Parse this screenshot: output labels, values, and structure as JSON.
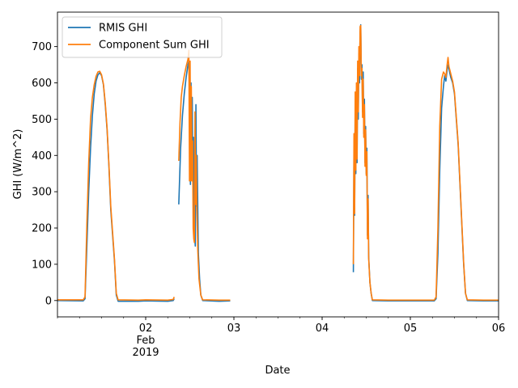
{
  "chart_data": {
    "type": "line",
    "xlabel": "Date",
    "ylabel": "GHI (W/m^2)",
    "xlim": [
      "2019-02-01T00:00",
      "2019-02-06T00:00"
    ],
    "ylim": [
      -45,
      795
    ],
    "grid": false,
    "legend": "top-left",
    "x_ticks": [
      {
        "at": "2019-02-02T00:00",
        "label": "02",
        "label2": "Feb",
        "label3": "2019"
      },
      {
        "at": "2019-02-03T00:00",
        "label": "03"
      },
      {
        "at": "2019-02-04T00:00",
        "label": "04"
      },
      {
        "at": "2019-02-05T00:00",
        "label": "05"
      },
      {
        "at": "2019-02-06T00:00",
        "label": "06"
      }
    ],
    "y_ticks": [
      0,
      100,
      200,
      300,
      400,
      500,
      600,
      700
    ],
    "series": [
      {
        "name": "RMIS GHI",
        "color": "#1f77b4",
        "segments": [
          [
            [
              "2019-02-01T00:00",
              0
            ],
            [
              "2019-02-01T07:00",
              -1
            ],
            [
              "2019-02-01T07:30",
              5
            ],
            [
              "2019-02-01T08:00",
              150
            ],
            [
              "2019-02-01T08:30",
              300
            ],
            [
              "2019-02-01T09:00",
              420
            ],
            [
              "2019-02-01T09:30",
              510
            ],
            [
              "2019-02-01T10:00",
              570
            ],
            [
              "2019-02-01T10:30",
              605
            ],
            [
              "2019-02-01T11:00",
              622
            ],
            [
              "2019-02-01T11:30",
              628
            ],
            [
              "2019-02-01T12:00",
              620
            ],
            [
              "2019-02-01T12:30",
              595
            ],
            [
              "2019-02-01T13:00",
              540
            ],
            [
              "2019-02-01T13:30",
              470
            ],
            [
              "2019-02-01T14:00",
              370
            ],
            [
              "2019-02-01T14:30",
              250
            ],
            [
              "2019-02-01T15:30",
              110
            ],
            [
              "2019-02-01T16:00",
              15
            ],
            [
              "2019-02-01T16:30",
              -2
            ],
            [
              "2019-02-01T22:00",
              -2
            ],
            [
              "2019-02-02T00:00",
              -1
            ],
            [
              "2019-02-02T06:00",
              -2
            ],
            [
              "2019-02-02T07:30",
              0
            ],
            [
              "2019-02-02T07:45",
              5
            ]
          ],
          [
            [
              "2019-02-02T09:00",
              265
            ],
            [
              "2019-02-02T09:30",
              420
            ],
            [
              "2019-02-02T10:00",
              510
            ],
            [
              "2019-02-02T10:30",
              570
            ],
            [
              "2019-02-02T11:00",
              615
            ],
            [
              "2019-02-02T11:30",
              650
            ],
            [
              "2019-02-02T11:45",
              660
            ],
            [
              "2019-02-02T12:00",
              540
            ],
            [
              "2019-02-02T12:10",
              320
            ],
            [
              "2019-02-02T12:20",
              600
            ],
            [
              "2019-02-02T12:30",
              340
            ],
            [
              "2019-02-02T12:40",
              560
            ],
            [
              "2019-02-02T12:50",
              320
            ],
            [
              "2019-02-02T13:00",
              450
            ],
            [
              "2019-02-02T13:10",
              180
            ],
            [
              "2019-02-02T13:20",
              175
            ],
            [
              "2019-02-02T13:30",
              150
            ],
            [
              "2019-02-02T13:40",
              540
            ],
            [
              "2019-02-02T13:50",
              260
            ],
            [
              "2019-02-02T14:00",
              400
            ],
            [
              "2019-02-02T14:10",
              260
            ],
            [
              "2019-02-02T14:20",
              130
            ],
            [
              "2019-02-02T14:40",
              60
            ],
            [
              "2019-02-02T15:00",
              15
            ],
            [
              "2019-02-02T15:30",
              0
            ],
            [
              "2019-02-02T20:00",
              -2
            ],
            [
              "2019-02-02T23:00",
              -1
            ]
          ],
          [
            [
              "2019-02-04T08:30",
              78
            ],
            [
              "2019-02-04T08:40",
              420
            ],
            [
              "2019-02-04T08:50",
              235
            ],
            [
              "2019-02-04T09:00",
              540
            ],
            [
              "2019-02-04T09:10",
              350
            ],
            [
              "2019-02-04T09:20",
              580
            ],
            [
              "2019-02-04T09:30",
              380
            ],
            [
              "2019-02-04T09:40",
              640
            ],
            [
              "2019-02-04T09:50",
              500
            ],
            [
              "2019-02-04T10:00",
              680
            ],
            [
              "2019-02-04T10:10",
              600
            ],
            [
              "2019-02-04T10:20",
              740
            ],
            [
              "2019-02-04T10:30",
              760
            ],
            [
              "2019-02-04T10:40",
              610
            ],
            [
              "2019-02-04T10:50",
              650
            ],
            [
              "2019-02-04T11:00",
              520
            ],
            [
              "2019-02-04T11:10",
              630
            ],
            [
              "2019-02-04T11:20",
              460
            ],
            [
              "2019-02-04T11:30",
              555
            ],
            [
              "2019-02-04T11:40",
              380
            ],
            [
              "2019-02-04T11:50",
              480
            ],
            [
              "2019-02-04T12:00",
              350
            ],
            [
              "2019-02-04T12:10",
              420
            ],
            [
              "2019-02-04T12:20",
              180
            ],
            [
              "2019-02-04T12:30",
              290
            ],
            [
              "2019-02-04T12:40",
              120
            ],
            [
              "2019-02-04T13:00",
              50
            ],
            [
              "2019-02-04T13:20",
              20
            ],
            [
              "2019-02-04T13:40",
              0
            ],
            [
              "2019-02-04T18:00",
              -1
            ],
            [
              "2019-02-05T00:00",
              -1
            ],
            [
              "2019-02-05T06:30",
              -1
            ],
            [
              "2019-02-05T07:00",
              5
            ],
            [
              "2019-02-05T07:30",
              130
            ],
            [
              "2019-02-05T08:00",
              360
            ],
            [
              "2019-02-05T08:30",
              530
            ],
            [
              "2019-02-05T09:00",
              590
            ],
            [
              "2019-02-05T09:20",
              620
            ],
            [
              "2019-02-05T09:40",
              605
            ],
            [
              "2019-02-05T10:00",
              635
            ],
            [
              "2019-02-05T10:20",
              650
            ],
            [
              "2019-02-05T10:40",
              630
            ],
            [
              "2019-02-05T11:00",
              615
            ],
            [
              "2019-02-05T11:30",
              600
            ],
            [
              "2019-02-05T12:00",
              570
            ],
            [
              "2019-02-05T12:30",
              500
            ],
            [
              "2019-02-05T13:00",
              430
            ],
            [
              "2019-02-05T13:30",
              320
            ],
            [
              "2019-02-05T14:00",
              210
            ],
            [
              "2019-02-05T14:30",
              100
            ],
            [
              "2019-02-05T15:00",
              20
            ],
            [
              "2019-02-05T15:30",
              0
            ],
            [
              "2019-02-05T20:00",
              -1
            ],
            [
              "2019-02-06T00:00",
              -1
            ]
          ]
        ]
      },
      {
        "name": "Component Sum GHI",
        "color": "#ff7f0e",
        "segments": [
          [
            [
              "2019-02-01T00:00",
              2
            ],
            [
              "2019-02-01T07:00",
              2
            ],
            [
              "2019-02-01T07:30",
              10
            ],
            [
              "2019-02-01T08:00",
              210
            ],
            [
              "2019-02-01T08:30",
              380
            ],
            [
              "2019-02-01T09:00",
              500
            ],
            [
              "2019-02-01T09:30",
              560
            ],
            [
              "2019-02-01T10:00",
              595
            ],
            [
              "2019-02-01T10:30",
              618
            ],
            [
              "2019-02-01T11:00",
              630
            ],
            [
              "2019-02-01T11:30",
              632
            ],
            [
              "2019-02-01T12:00",
              622
            ],
            [
              "2019-02-01T12:30",
              597
            ],
            [
              "2019-02-01T13:00",
              545
            ],
            [
              "2019-02-01T13:30",
              475
            ],
            [
              "2019-02-01T14:00",
              375
            ],
            [
              "2019-02-01T14:30",
              260
            ],
            [
              "2019-02-01T15:30",
              115
            ],
            [
              "2019-02-01T16:00",
              20
            ],
            [
              "2019-02-01T16:30",
              2
            ],
            [
              "2019-02-01T22:00",
              1
            ],
            [
              "2019-02-02T00:00",
              2
            ],
            [
              "2019-02-02T06:00",
              1
            ],
            [
              "2019-02-02T07:30",
              3
            ],
            [
              "2019-02-02T07:45",
              10
            ]
          ],
          [
            [
              "2019-02-02T09:00",
              385
            ],
            [
              "2019-02-02T09:20",
              490
            ],
            [
              "2019-02-02T09:40",
              560
            ],
            [
              "2019-02-02T10:00",
              590
            ],
            [
              "2019-02-02T10:30",
              620
            ],
            [
              "2019-02-02T11:00",
              645
            ],
            [
              "2019-02-02T11:30",
              665
            ],
            [
              "2019-02-02T11:45",
              690
            ],
            [
              "2019-02-02T11:55",
              330
            ],
            [
              "2019-02-02T12:05",
              660
            ],
            [
              "2019-02-02T12:15",
              330
            ],
            [
              "2019-02-02T12:25",
              590
            ],
            [
              "2019-02-02T12:35",
              330
            ],
            [
              "2019-02-02T12:45",
              440
            ],
            [
              "2019-02-02T12:55",
              200
            ],
            [
              "2019-02-02T13:05",
              170
            ],
            [
              "2019-02-02T13:15",
              160
            ],
            [
              "2019-02-02T13:25",
              520
            ],
            [
              "2019-02-02T13:35",
              265
            ],
            [
              "2019-02-02T13:45",
              400
            ],
            [
              "2019-02-02T13:55",
              260
            ],
            [
              "2019-02-02T14:10",
              140
            ],
            [
              "2019-02-02T14:30",
              60
            ],
            [
              "2019-02-02T15:00",
              15
            ],
            [
              "2019-02-02T15:30",
              2
            ],
            [
              "2019-02-02T20:00",
              1
            ],
            [
              "2019-02-02T23:00",
              1
            ]
          ],
          [
            [
              "2019-02-04T08:30",
              100
            ],
            [
              "2019-02-04T08:40",
              460
            ],
            [
              "2019-02-04T08:50",
              240
            ],
            [
              "2019-02-04T09:00",
              575
            ],
            [
              "2019-02-04T09:10",
              360
            ],
            [
              "2019-02-04T09:20",
              600
            ],
            [
              "2019-02-04T09:30",
              390
            ],
            [
              "2019-02-04T09:40",
              660
            ],
            [
              "2019-02-04T09:50",
              520
            ],
            [
              "2019-02-04T10:00",
              700
            ],
            [
              "2019-02-04T10:10",
              620
            ],
            [
              "2019-02-04T10:20",
              755
            ],
            [
              "2019-02-04T10:30",
              758
            ],
            [
              "2019-02-04T10:40",
              620
            ],
            [
              "2019-02-04T10:50",
              640
            ],
            [
              "2019-02-04T11:00",
              505
            ],
            [
              "2019-02-04T11:10",
              610
            ],
            [
              "2019-02-04T11:20",
              450
            ],
            [
              "2019-02-04T11:30",
              540
            ],
            [
              "2019-02-04T11:40",
              370
            ],
            [
              "2019-02-04T11:50",
              470
            ],
            [
              "2019-02-04T12:00",
              345
            ],
            [
              "2019-02-04T12:10",
              410
            ],
            [
              "2019-02-04T12:20",
              170
            ],
            [
              "2019-02-04T12:30",
              280
            ],
            [
              "2019-02-04T12:40",
              115
            ],
            [
              "2019-02-04T13:00",
              50
            ],
            [
              "2019-02-04T13:20",
              20
            ],
            [
              "2019-02-04T13:40",
              2
            ],
            [
              "2019-02-04T18:00",
              1
            ],
            [
              "2019-02-05T00:00",
              1
            ],
            [
              "2019-02-05T06:30",
              1
            ],
            [
              "2019-02-05T07:00",
              10
            ],
            [
              "2019-02-05T07:30",
              200
            ],
            [
              "2019-02-05T08:00",
              480
            ],
            [
              "2019-02-05T08:30",
              610
            ],
            [
              "2019-02-05T09:00",
              630
            ],
            [
              "2019-02-05T09:20",
              625
            ],
            [
              "2019-02-05T09:40",
              615
            ],
            [
              "2019-02-05T10:00",
              650
            ],
            [
              "2019-02-05T10:15",
              670
            ],
            [
              "2019-02-05T10:30",
              645
            ],
            [
              "2019-02-05T11:00",
              625
            ],
            [
              "2019-02-05T11:30",
              605
            ],
            [
              "2019-02-05T12:00",
              575
            ],
            [
              "2019-02-05T12:30",
              505
            ],
            [
              "2019-02-05T13:00",
              435
            ],
            [
              "2019-02-05T13:30",
              325
            ],
            [
              "2019-02-05T14:00",
              215
            ],
            [
              "2019-02-05T14:30",
              105
            ],
            [
              "2019-02-05T15:00",
              20
            ],
            [
              "2019-02-05T15:30",
              2
            ],
            [
              "2019-02-05T20:00",
              1
            ],
            [
              "2019-02-06T00:00",
              1
            ]
          ]
        ]
      }
    ]
  }
}
